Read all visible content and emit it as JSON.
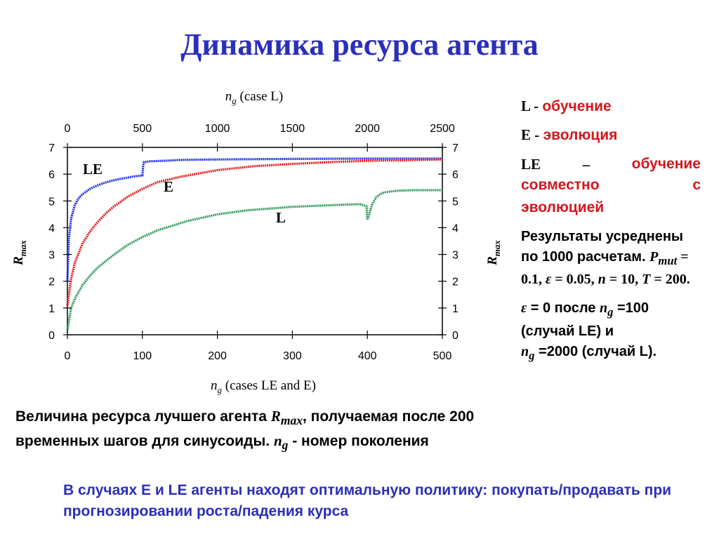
{
  "slide": {
    "title": "Динамика ресурса агента"
  },
  "chart_data": {
    "type": "line",
    "x_bottom": {
      "label_prefix": "n",
      "label_sub": "g",
      "label_rest": " (cases LE and E)",
      "range": [
        0,
        500
      ],
      "ticks": [
        0,
        100,
        200,
        300,
        400,
        500
      ]
    },
    "x_top": {
      "label_prefix": "n",
      "label_sub": "g",
      "label_rest": " (case  L)",
      "range": [
        0,
        2500
      ],
      "ticks": [
        0,
        500,
        1000,
        1500,
        2000,
        2500
      ]
    },
    "y": {
      "label_main": "R",
      "label_sub": "max",
      "range": [
        0,
        7
      ],
      "ticks": [
        0,
        1,
        2,
        3,
        4,
        5,
        6,
        7
      ]
    },
    "grid": false,
    "series": [
      {
        "name": "LE",
        "color": "#1f2fe0",
        "axis": "bottom",
        "x": [
          0,
          2,
          5,
          10,
          15,
          20,
          30,
          40,
          50,
          60,
          70,
          80,
          90,
          100,
          101,
          102,
          110,
          130,
          150,
          200,
          300,
          400,
          500
        ],
        "y": [
          2.0,
          3.6,
          4.35,
          4.85,
          5.1,
          5.25,
          5.45,
          5.58,
          5.68,
          5.76,
          5.82,
          5.87,
          5.92,
          5.95,
          6.3,
          6.45,
          6.48,
          6.5,
          6.53,
          6.55,
          6.57,
          6.58,
          6.58
        ]
      },
      {
        "name": "E",
        "color": "#e01f1f",
        "axis": "bottom",
        "x": [
          0,
          5,
          10,
          20,
          30,
          40,
          50,
          60,
          80,
          100,
          120,
          150,
          200,
          250,
          300,
          350,
          400,
          450,
          500
        ],
        "y": [
          1.1,
          2.1,
          2.7,
          3.4,
          3.85,
          4.2,
          4.5,
          4.75,
          5.15,
          5.45,
          5.7,
          5.9,
          6.15,
          6.3,
          6.38,
          6.45,
          6.5,
          6.52,
          6.55
        ]
      },
      {
        "name": "L",
        "color": "#2e9a5a",
        "axis": "top",
        "x": [
          0,
          25,
          50,
          100,
          150,
          200,
          300,
          400,
          500,
          600,
          800,
          1000,
          1200,
          1500,
          1800,
          1950,
          1995,
          2000,
          2010,
          2030,
          2060,
          2100,
          2150,
          2200,
          2300,
          2500
        ],
        "y": [
          0.15,
          1.0,
          1.35,
          1.85,
          2.2,
          2.5,
          2.95,
          3.35,
          3.65,
          3.9,
          4.25,
          4.5,
          4.65,
          4.78,
          4.85,
          4.88,
          4.8,
          4.3,
          4.45,
          4.85,
          5.15,
          5.3,
          5.35,
          5.38,
          5.4,
          5.4
        ]
      }
    ]
  },
  "legend": {
    "l_key": "L - ",
    "l_val": "обучение",
    "e_key": "E - ",
    "e_val": "эволюция",
    "le_key": "LE",
    "le_dash": "–",
    "le_val1": "обучение",
    "le_val2": "совместно",
    "le_val3": "с",
    "le_val4": "эволюцией",
    "note1_a": "Результаты усреднены по 1000 расчетам. ",
    "note1_p": "P",
    "note1_psub": "mut",
    "note1_b": " = 0.1, ",
    "note1_eps": "ε",
    "note1_c": " = 0.05, ",
    "note1_n": "n",
    "note1_d": " = 10, ",
    "note1_t": "T",
    "note1_e": " = 200.",
    "note2_eps": "ε",
    "note2_a": " = 0 после ",
    "note2_n": "n",
    "note2_nsub": "g",
    "note2_b": " =100 (случай LE) и",
    "note2_n2": "n",
    "note2_n2sub": "g",
    "note2_c": " =2000 (случай L)."
  },
  "caption": {
    "a": "Величина ресурса лучшего агента ",
    "r": "R",
    "rsub": "max",
    "b": ", получаемая после 200 временных шагов для синусоиды. ",
    "n": "n",
    "nsub": "g",
    "c": " - номер поколения"
  },
  "conclusion": {
    "text": "В случаях Е и LE агенты находят оптимальную политику: покупать/продавать при прогнозировании роста/падения курса"
  }
}
